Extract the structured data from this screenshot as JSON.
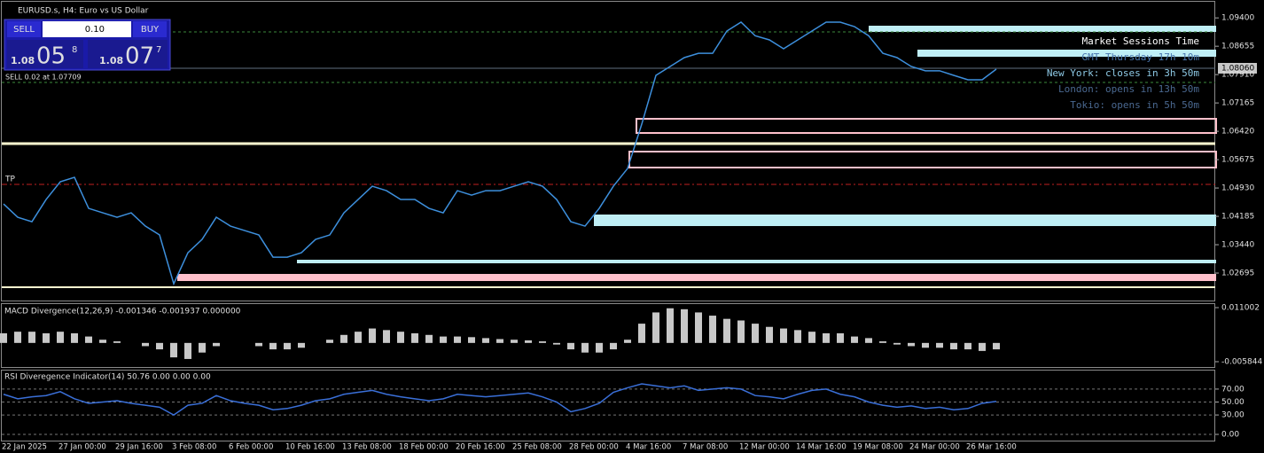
{
  "ui": {
    "symbol": "EURUSD.s, H4: Euro vs US Dollar",
    "sell": "SELL",
    "buy": "BUY",
    "lot": "0.10",
    "bid_big": "1.08",
    "bid_main": "05",
    "bid_sup": "8",
    "ask_big": "1.08",
    "ask_main": "07",
    "ask_sup": "7",
    "order": "SELL 0.02 at 1.07709",
    "tp": "TP",
    "price_tag": "1.08060",
    "sessions": {
      "title": "Market Sessions Time",
      "gmt": "GMT Thursday 17h 10m",
      "new_york": "New York: closes in 3h 50m",
      "london": "London: opens in 13h 50m",
      "tokio": "Tokio: opens in 5h 50m"
    }
  },
  "chart_data": [
    {
      "type": "line",
      "title": "EURUSD.s, H4: Euro vs US Dollar",
      "color": "#3d8fdc",
      "values": [
        1.04511,
        1.04162,
        1.04045,
        1.04628,
        1.05094,
        1.0521,
        1.04395,
        1.04278,
        1.04162,
        1.04278,
        1.03929,
        1.03696,
        1.02414,
        1.0323,
        1.03579,
        1.04162,
        1.03929,
        1.03812,
        1.03696,
        1.03113,
        1.03113,
        1.0323,
        1.03579,
        1.03696,
        1.04278,
        1.04628,
        1.04977,
        1.0486,
        1.04628,
        1.04628,
        1.04395,
        1.04278,
        1.0486,
        1.04744,
        1.0486,
        1.0486,
        1.04977,
        1.05094,
        1.04977,
        1.04628,
        1.04045,
        1.03929,
        1.04395,
        1.04977,
        1.05443,
        1.06608,
        1.0789,
        1.08123,
        1.08356,
        1.0847,
        1.0847,
        1.09055,
        1.09288,
        1.0893,
        1.08822,
        1.08589,
        1.08822,
        1.09055,
        1.09288,
        1.09288,
        1.09171,
        1.0893,
        1.0847,
        1.08356,
        1.08123,
        1.0801,
        1.0801,
        1.0789,
        1.07773,
        1.07773,
        1.08053
      ],
      "ylim": [
        1.0195,
        1.0987
      ],
      "yticks": [
        {
          "value": 1.094,
          "label": "1.09400"
        },
        {
          "value": 1.08655,
          "label": "1.08655"
        },
        {
          "value": 1.0791,
          "label": "1.07910"
        },
        {
          "value": 1.07165,
          "label": "1.07165"
        },
        {
          "value": 1.0642,
          "label": "1.06420"
        },
        {
          "value": 1.05675,
          "label": "1.05675"
        },
        {
          "value": 1.0493,
          "label": "1.04930"
        },
        {
          "value": 1.04185,
          "label": "1.04185"
        },
        {
          "value": 1.0344,
          "label": "1.03440"
        },
        {
          "value": 1.02695,
          "label": "1.02695"
        }
      ],
      "xticks": [
        "22 Jan 2025",
        "27 Jan 00:00",
        "29 Jan 16:00",
        "3 Feb 08:00",
        "6 Feb 00:00",
        "10 Feb 16:00",
        "13 Feb 08:00",
        "18 Feb 00:00",
        "20 Feb 16:00",
        "25 Feb 08:00",
        "28 Feb 00:00",
        "4 Mar 16:00",
        "7 Mar 08:00",
        "12 Mar 00:00",
        "14 Mar 16:00",
        "19 Mar 08:00",
        "24 Mar 00:00",
        "26 Mar 16:00"
      ]
    },
    {
      "type": "bar",
      "title": "MACD Divergence(12,26,9) -0.001346 -0.001937 0.000000",
      "color": "#c8c8c8",
      "values": [
        0.003,
        0.0035,
        0.0035,
        0.003,
        0.0035,
        0.003,
        0.002,
        0.001,
        0.0005,
        0,
        -0.001,
        -0.002,
        -0.0045,
        -0.005,
        -0.003,
        -0.001,
        0,
        0,
        -0.001,
        -0.002,
        -0.002,
        -0.0015,
        0,
        0.001,
        0.0025,
        0.0035,
        0.0045,
        0.004,
        0.0035,
        0.003,
        0.0025,
        0.002,
        0.002,
        0.0018,
        0.0015,
        0.0012,
        0.001,
        0.0008,
        0.0005,
        -0.0005,
        -0.002,
        -0.003,
        -0.003,
        -0.002,
        0.001,
        0.006,
        0.0095,
        0.0108,
        0.0105,
        0.0095,
        0.0085,
        0.0075,
        0.007,
        0.006,
        0.005,
        0.0045,
        0.004,
        0.0035,
        0.003,
        0.003,
        0.002,
        0.0015,
        0.0005,
        -0.0005,
        -0.001,
        -0.0015,
        -0.0015,
        -0.002,
        -0.002,
        -0.0025,
        -0.002
      ],
      "ylim": [
        -0.005844,
        0.011002
      ],
      "yticks": [
        -0.005844,
        0.011002
      ]
    },
    {
      "type": "line",
      "title": "RSI Diveregence Indicator(14) 50.76 0.00 0.00 0.00",
      "color": "#3a6fd8",
      "values": [
        62,
        55,
        58,
        60,
        66,
        55,
        48,
        50,
        52,
        48,
        45,
        42,
        30,
        45,
        48,
        60,
        52,
        48,
        45,
        38,
        40,
        45,
        52,
        55,
        62,
        65,
        68,
        62,
        58,
        55,
        52,
        55,
        62,
        60,
        58,
        60,
        62,
        64,
        58,
        50,
        35,
        40,
        48,
        65,
        72,
        78,
        75,
        72,
        75,
        68,
        70,
        72,
        70,
        60,
        58,
        55,
        62,
        68,
        70,
        62,
        58,
        50,
        45,
        42,
        44,
        40,
        42,
        38,
        40,
        48,
        51
      ],
      "ylim": [
        0,
        100
      ],
      "yticks": [
        {
          "value": 70,
          "label": "70.00"
        },
        {
          "value": 50,
          "label": "50.00"
        },
        {
          "value": 30,
          "label": "30.00"
        },
        {
          "value": 0,
          "label": "0.00"
        }
      ]
    }
  ]
}
